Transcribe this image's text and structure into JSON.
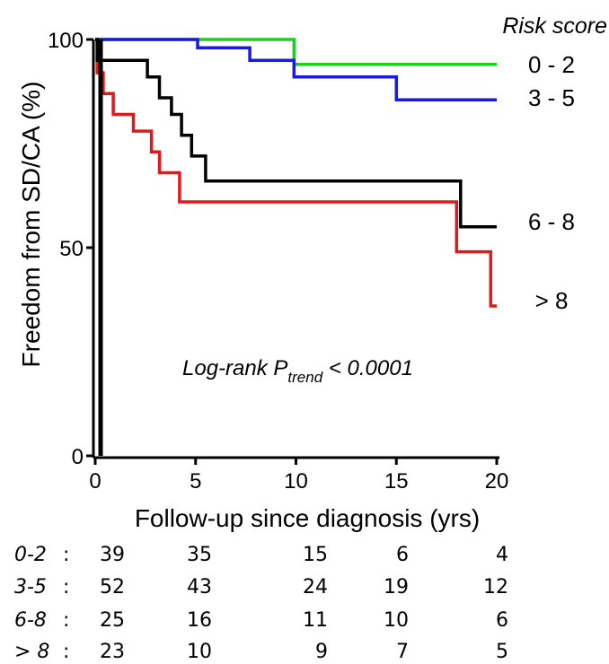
{
  "chart_data": {
    "type": "line",
    "step": true,
    "xlabel": "Follow-up since diagnosis (yrs)",
    "ylabel": "Freedom from SD/CA (%)",
    "xlim": [
      0,
      20
    ],
    "ylim": [
      0,
      100
    ],
    "xticks": [
      "0",
      "5",
      "10",
      "15",
      "20"
    ],
    "yticks": [
      "0",
      "50",
      "100"
    ],
    "legend_title": "Risk score",
    "annotation": {
      "prefix": "Log-rank P",
      "subscript": "trend",
      "suffix": " < 0.0001"
    },
    "series": [
      {
        "name": "0 - 2",
        "color": "#22cc22",
        "x": [
          0,
          9.9,
          9.9,
          20
        ],
        "y": [
          100,
          100,
          94,
          94
        ]
      },
      {
        "name": "3 - 5",
        "color": "#1a1adc",
        "x": [
          0,
          5.1,
          5.1,
          7.7,
          7.7,
          9.9,
          9.9,
          15.0,
          15.0,
          20
        ],
        "y": [
          100,
          100,
          98,
          98,
          95,
          95,
          91,
          91,
          85.5,
          85.5
        ]
      },
      {
        "name": "6 - 8",
        "color": "#000000",
        "x": [
          0,
          0.1,
          0.1,
          0.3,
          0.3,
          2.6,
          2.6,
          3.2,
          3.2,
          3.8,
          3.8,
          4.3,
          4.3,
          4.8,
          4.8,
          5.5,
          5.5,
          7.6,
          7.6,
          18.2,
          18.2,
          20
        ],
        "y": [
          100,
          100,
          95,
          95,
          95,
          95,
          91,
          91,
          86,
          86,
          82,
          82,
          77,
          77,
          72,
          72,
          66,
          66,
          66,
          66,
          55,
          55
        ]
      },
      {
        "name": "> 8",
        "color": "#e01a1a",
        "x": [
          0,
          0.1,
          0.1,
          0.4,
          0.4,
          0.9,
          0.9,
          1.9,
          1.9,
          2.8,
          2.8,
          3.2,
          3.2,
          3.5,
          3.5,
          4.2,
          4.2,
          18.0,
          18.0,
          19.7,
          19.7,
          20
        ],
        "y": [
          100,
          100,
          92,
          92,
          87,
          87,
          82,
          82,
          78,
          78,
          73,
          73,
          68,
          68,
          68,
          68,
          61,
          61,
          49,
          49,
          36,
          36
        ]
      }
    ],
    "risk_table": {
      "time_points": [
        0,
        5,
        10,
        15,
        20
      ],
      "rows": [
        {
          "label": "0-2",
          "values": [
            "39",
            "35",
            "15",
            "6",
            "4"
          ]
        },
        {
          "label": "3-5",
          "values": [
            "52",
            "43",
            "24",
            "19",
            "12"
          ]
        },
        {
          "label": "6-8",
          "values": [
            "25",
            "16",
            "11",
            "10",
            "6"
          ]
        },
        {
          "label": "> 8",
          "values": [
            "23",
            "10",
            "9",
            "7",
            "5"
          ]
        }
      ]
    }
  }
}
